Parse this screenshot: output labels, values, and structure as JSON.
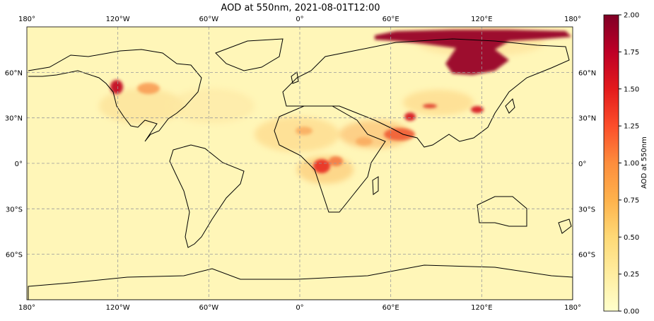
{
  "title": "AOD at 550nm, 2021-08-01T12:00",
  "lon_ticks": [
    "180°",
    "120°W",
    "60°W",
    "0°",
    "60°E",
    "120°E",
    "180°"
  ],
  "lat_ticks": [
    "60°N",
    "30°N",
    "0°",
    "30°S",
    "60°S"
  ],
  "colorbar": {
    "label": "AOD at 550nm",
    "ticks": [
      "0.00",
      "0.25",
      "0.50",
      "0.75",
      "1.00",
      "1.25",
      "1.50",
      "1.75",
      "2.00"
    ],
    "range": [
      0,
      2
    ],
    "colors": [
      "#ffffcc",
      "#ffeda0",
      "#fed976",
      "#feb24c",
      "#fd8d3c",
      "#fc4e2a",
      "#e31a1c",
      "#bd0026",
      "#800026"
    ]
  },
  "map": {
    "projection": "PlateCarree",
    "gridlines": true,
    "background_color": "#fff6b8",
    "coastline_color": "#000000"
  }
}
